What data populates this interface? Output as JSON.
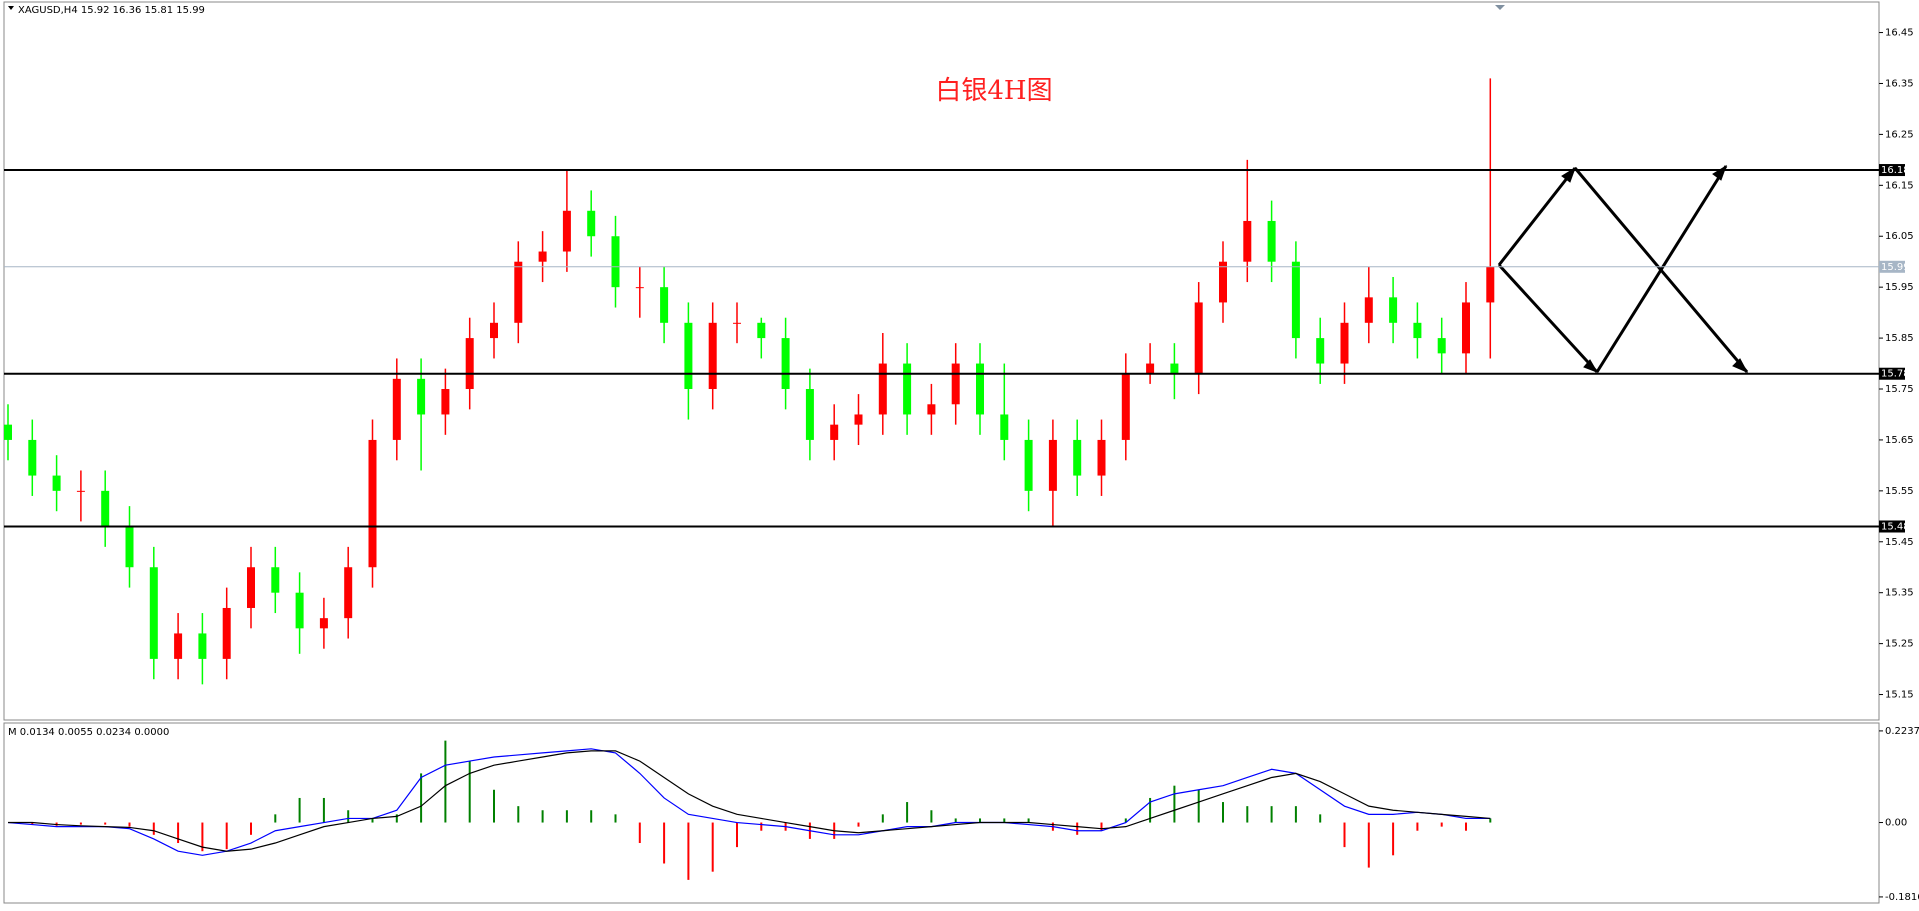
{
  "chart_data": [
    {
      "type": "candlestick",
      "title": "白银4H图",
      "symbol_label": "XAGUSD,H4  15.92 16.36 15.81 15.99",
      "up_color": "#ff0000",
      "down_color": "#00ff00",
      "ylim": [
        15.1,
        16.51
      ],
      "yticks": [
        16.45,
        16.35,
        16.25,
        16.15,
        16.05,
        15.95,
        15.85,
        15.75,
        15.65,
        15.55,
        15.45,
        15.35,
        15.25,
        15.15
      ],
      "open": [
        15.68,
        15.65,
        15.58,
        15.55,
        15.55,
        15.48,
        15.4,
        15.22,
        15.27,
        15.22,
        15.32,
        15.4,
        15.35,
        15.28,
        15.3,
        15.4,
        15.65,
        15.77,
        15.7,
        15.75,
        15.85,
        15.88,
        16.0,
        16.02,
        16.1,
        16.05,
        15.95,
        15.95,
        15.88,
        15.75,
        15.88,
        15.88,
        15.85,
        15.75,
        15.65,
        15.68,
        15.7,
        15.8,
        15.7,
        15.72,
        15.8,
        15.7,
        15.65,
        15.55,
        15.65,
        15.58,
        15.65,
        15.78,
        15.8,
        15.78,
        15.92,
        16.0,
        16.08,
        16.0,
        15.85,
        15.8,
        15.88,
        15.93,
        15.88,
        15.85,
        15.82,
        15.92
      ],
      "high": [
        15.72,
        15.69,
        15.62,
        15.59,
        15.59,
        15.52,
        15.44,
        15.31,
        15.31,
        15.36,
        15.44,
        15.44,
        15.39,
        15.34,
        15.44,
        15.69,
        15.81,
        15.81,
        15.79,
        15.89,
        15.92,
        16.04,
        16.06,
        16.18,
        16.14,
        16.09,
        15.99,
        15.99,
        15.92,
        15.92,
        15.92,
        15.89,
        15.89,
        15.79,
        15.72,
        15.74,
        15.86,
        15.84,
        15.76,
        15.84,
        15.84,
        15.8,
        15.69,
        15.69,
        15.69,
        15.69,
        15.82,
        15.84,
        15.84,
        15.96,
        16.04,
        16.2,
        16.12,
        16.04,
        15.89,
        15.92,
        15.99,
        15.97,
        15.92,
        15.89,
        15.96,
        16.36
      ],
      "low": [
        15.61,
        15.54,
        15.51,
        15.49,
        15.44,
        15.36,
        15.18,
        15.18,
        15.17,
        15.18,
        15.28,
        15.31,
        15.23,
        15.24,
        15.26,
        15.36,
        15.61,
        15.59,
        15.66,
        15.71,
        15.81,
        15.84,
        15.96,
        15.98,
        16.01,
        15.91,
        15.89,
        15.84,
        15.69,
        15.71,
        15.84,
        15.81,
        15.71,
        15.61,
        15.61,
        15.64,
        15.66,
        15.66,
        15.66,
        15.68,
        15.66,
        15.61,
        15.51,
        15.48,
        15.54,
        15.54,
        15.61,
        15.76,
        15.73,
        15.74,
        15.88,
        15.96,
        15.96,
        15.81,
        15.76,
        15.76,
        15.84,
        15.84,
        15.81,
        15.78,
        15.78,
        15.81
      ],
      "close": [
        15.65,
        15.58,
        15.55,
        15.55,
        15.48,
        15.4,
        15.22,
        15.27,
        15.22,
        15.32,
        15.4,
        15.35,
        15.28,
        15.3,
        15.4,
        15.65,
        15.77,
        15.7,
        15.75,
        15.85,
        15.88,
        16.0,
        16.02,
        16.1,
        16.05,
        15.95,
        15.95,
        15.88,
        15.75,
        15.88,
        15.88,
        15.85,
        15.75,
        15.65,
        15.68,
        15.7,
        15.8,
        15.7,
        15.72,
        15.8,
        15.7,
        15.65,
        15.55,
        15.65,
        15.58,
        15.65,
        15.78,
        15.8,
        15.78,
        15.92,
        16.0,
        16.08,
        16.0,
        15.85,
        15.8,
        15.88,
        15.93,
        15.88,
        15.85,
        15.82,
        15.92,
        15.99
      ],
      "levels": [
        {
          "value": 16.18,
          "color": "#000000"
        },
        {
          "value": 15.99,
          "color": "#a7b6c6"
        },
        {
          "value": 15.78,
          "color": "#000000"
        },
        {
          "value": 15.48,
          "color": "#000000"
        }
      ]
    },
    {
      "type": "macd",
      "label": "M 0.0134 0.0055 0.0234 0.0000",
      "ylim": [
        -0.194,
        0.243
      ],
      "yticks": [
        0.2237,
        {
          "value": 0,
          "label": "0.00"
        },
        -0.1816
      ],
      "pos_color": "#008000",
      "neg_color": "#ff0000",
      "values": [
        0.0,
        -0.005,
        -0.008,
        -0.005,
        -0.005,
        -0.01,
        -0.03,
        -0.05,
        -0.07,
        -0.065,
        -0.03,
        0.02,
        0.06,
        0.06,
        0.03,
        0.01,
        0.02,
        0.12,
        0.2,
        0.15,
        0.08,
        0.04,
        0.03,
        0.03,
        0.03,
        0.02,
        -0.05,
        -0.1,
        -0.14,
        -0.12,
        -0.06,
        -0.02,
        -0.02,
        -0.04,
        -0.04,
        -0.01,
        0.02,
        0.05,
        0.03,
        0.01,
        0.01,
        0.01,
        0.01,
        -0.02,
        -0.03,
        -0.02,
        0.01,
        0.06,
        0.09,
        0.08,
        0.05,
        0.04,
        0.04,
        0.04,
        0.02,
        -0.06,
        -0.11,
        -0.08,
        -0.02,
        -0.01,
        -0.02,
        0.01
      ],
      "series": [
        {
          "color": "#0000ff",
          "values": [
            0.0,
            -0.005,
            -0.01,
            -0.01,
            -0.01,
            -0.015,
            -0.04,
            -0.07,
            -0.08,
            -0.07,
            -0.05,
            -0.02,
            -0.01,
            0.0,
            0.01,
            0.01,
            0.03,
            0.11,
            0.14,
            0.15,
            0.16,
            0.165,
            0.17,
            0.175,
            0.18,
            0.17,
            0.12,
            0.06,
            0.02,
            0.01,
            0.0,
            -0.005,
            -0.01,
            -0.02,
            -0.03,
            -0.03,
            -0.02,
            -0.01,
            -0.01,
            0.0,
            0.0,
            0.0,
            -0.005,
            -0.01,
            -0.02,
            -0.02,
            0.0,
            0.05,
            0.07,
            0.08,
            0.09,
            0.11,
            0.13,
            0.12,
            0.08,
            0.04,
            0.02,
            0.02,
            0.025,
            0.02,
            0.01,
            0.01
          ]
        },
        {
          "color": "#000000",
          "values": [
            0.0,
            0.0,
            -0.005,
            -0.008,
            -0.01,
            -0.012,
            -0.02,
            -0.04,
            -0.06,
            -0.07,
            -0.065,
            -0.05,
            -0.03,
            -0.01,
            0.0,
            0.01,
            0.015,
            0.04,
            0.09,
            0.12,
            0.14,
            0.15,
            0.16,
            0.17,
            0.175,
            0.175,
            0.15,
            0.11,
            0.07,
            0.04,
            0.02,
            0.01,
            0.0,
            -0.01,
            -0.02,
            -0.025,
            -0.02,
            -0.015,
            -0.01,
            -0.005,
            0.0,
            0.0,
            0.0,
            -0.005,
            -0.01,
            -0.015,
            -0.01,
            0.01,
            0.03,
            0.05,
            0.07,
            0.09,
            0.11,
            0.12,
            0.1,
            0.07,
            0.04,
            0.03,
            0.025,
            0.02,
            0.015,
            0.01
          ]
        }
      ]
    }
  ]
}
